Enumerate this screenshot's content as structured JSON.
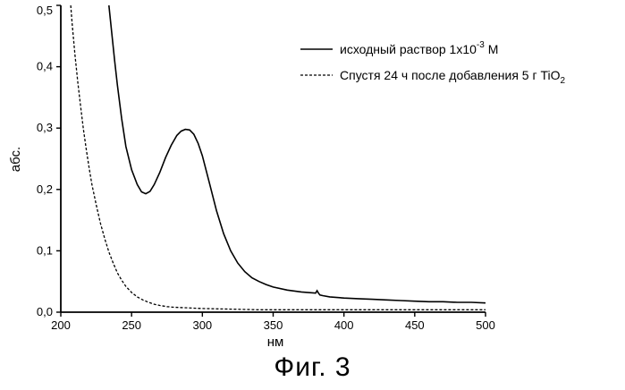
{
  "figure_caption": "Фиг. 3",
  "chart_data": {
    "type": "line",
    "xlabel": "нм",
    "ylabel": "абс.",
    "xlim": [
      200,
      500
    ],
    "ylim": [
      0,
      0.5
    ],
    "x_ticks": [
      "200",
      "250",
      "300",
      "350",
      "400",
      "450",
      "500"
    ],
    "y_ticks": [
      "0,0",
      "0,1",
      "0,2",
      "0,3",
      "0,4",
      "0,5"
    ],
    "legend_position": "top-right",
    "series": [
      {
        "name_main": "исходный раствор 1x10",
        "name_sup": "-3",
        "name_tail": " M",
        "style": "solid",
        "x": [
          234,
          236,
          238,
          240,
          243,
          246,
          250,
          254,
          257,
          260,
          263,
          266,
          270,
          274,
          278,
          282,
          285,
          288,
          291,
          294,
          297,
          300,
          305,
          310,
          315,
          320,
          325,
          330,
          335,
          340,
          345,
          350,
          360,
          370,
          380,
          381,
          382,
          383,
          385,
          390,
          400,
          410,
          420,
          430,
          440,
          450,
          460,
          470,
          480,
          490,
          500
        ],
        "y": [
          0.5,
          0.455,
          0.41,
          0.37,
          0.315,
          0.27,
          0.232,
          0.208,
          0.196,
          0.193,
          0.197,
          0.208,
          0.228,
          0.252,
          0.272,
          0.288,
          0.295,
          0.298,
          0.297,
          0.29,
          0.275,
          0.255,
          0.21,
          0.165,
          0.128,
          0.1,
          0.08,
          0.066,
          0.056,
          0.05,
          0.045,
          0.041,
          0.036,
          0.033,
          0.031,
          0.035,
          0.031,
          0.028,
          0.027,
          0.025,
          0.023,
          0.022,
          0.021,
          0.02,
          0.019,
          0.018,
          0.017,
          0.017,
          0.016,
          0.016,
          0.015
        ]
      },
      {
        "name_main": "Спустя 24 ч после добавления 5 г TiO",
        "name_sub": "2",
        "style": "dashed",
        "x": [
          207,
          208,
          210,
          212,
          214,
          216,
          218,
          220,
          222,
          225,
          228,
          231,
          234,
          237,
          240,
          243,
          246,
          250,
          254,
          258,
          262,
          266,
          270,
          275,
          280,
          290,
          300,
          320,
          340,
          360,
          380,
          400,
          420,
          440,
          460,
          480,
          500
        ],
        "y": [
          0.5,
          0.47,
          0.42,
          0.375,
          0.335,
          0.298,
          0.265,
          0.235,
          0.208,
          0.175,
          0.145,
          0.12,
          0.098,
          0.08,
          0.064,
          0.052,
          0.042,
          0.032,
          0.025,
          0.02,
          0.016,
          0.013,
          0.011,
          0.009,
          0.008,
          0.007,
          0.006,
          0.005,
          0.004,
          0.004,
          0.004,
          0.004,
          0.004,
          0.004,
          0.004,
          0.004,
          0.004
        ]
      }
    ]
  }
}
